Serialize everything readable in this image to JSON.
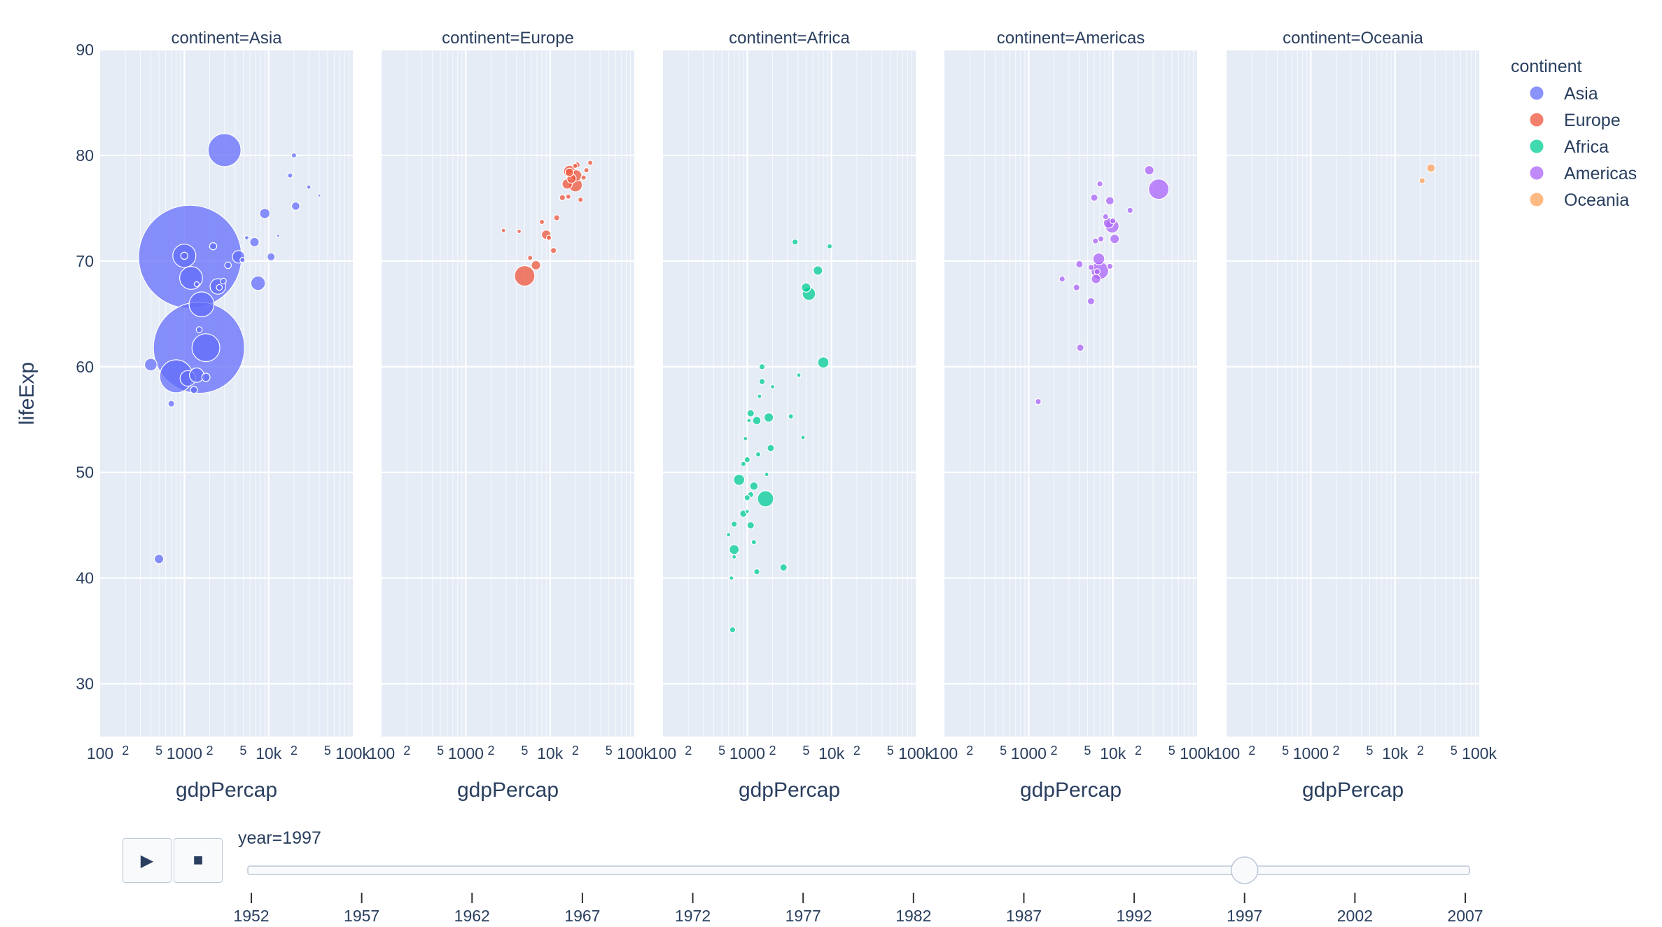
{
  "chart_data": {
    "type": "scatter",
    "facet_titles": [
      "continent=Asia",
      "continent=Europe",
      "continent=Africa",
      "continent=Americas",
      "continent=Oceania"
    ],
    "xlabel": "gdpPercap",
    "ylabel": "lifeExp",
    "x_scale": "log",
    "xlim": [
      100,
      100000
    ],
    "ylim": [
      25,
      90
    ],
    "y_ticks": [
      "30",
      "40",
      "50",
      "60",
      "70",
      "80",
      "90"
    ],
    "x_tick_labels": [
      {
        "value": 100,
        "label": "100"
      },
      {
        "value": 200,
        "label": "2"
      },
      {
        "value": 500,
        "label": "5"
      },
      {
        "value": 1000,
        "label": "1000"
      },
      {
        "value": 2000,
        "label": "2"
      },
      {
        "value": 5000,
        "label": "5"
      },
      {
        "value": 10000,
        "label": "10k"
      },
      {
        "value": 20000,
        "label": "2"
      },
      {
        "value": 50000,
        "label": "5"
      },
      {
        "value": 100000,
        "label": "100k"
      }
    ],
    "grid": true,
    "legend": {
      "title": "continent",
      "position": "right"
    },
    "series": [
      {
        "name": "Asia",
        "color": "#636efa",
        "points": [
          [
            1170,
            70.4,
            1230
          ],
          [
            1490,
            61.8,
            960
          ],
          [
            3000,
            80.5,
            125
          ],
          [
            800,
            59.1,
            125
          ],
          [
            1800,
            61.8,
            90
          ],
          [
            1600,
            65.9,
            72
          ],
          [
            1000,
            70.5,
            62
          ],
          [
            1200,
            68.4,
            60
          ],
          [
            9000,
            74.5,
            12
          ],
          [
            400,
            60.2,
            18
          ],
          [
            500,
            41.8,
            10
          ],
          [
            7500,
            67.9,
            24
          ],
          [
            1400,
            59.2,
            24
          ],
          [
            1100,
            58.9,
            28
          ],
          [
            2500,
            67.6,
            28
          ],
          [
            4400,
            70.4,
            18
          ],
          [
            6800,
            71.8,
            10
          ],
          [
            1800,
            59.0,
            8
          ],
          [
            700,
            56.5,
            5
          ],
          [
            1300,
            57.8,
            6
          ],
          [
            2200,
            71.4,
            6
          ],
          [
            1000,
            70.5,
            6
          ],
          [
            3300,
            69.6,
            5
          ],
          [
            2900,
            68.1,
            4
          ],
          [
            20000,
            80.0,
            3
          ],
          [
            18000,
            78.1,
            3
          ],
          [
            21000,
            75.2,
            8
          ],
          [
            1500,
            63.5,
            4
          ],
          [
            2600,
            67.5,
            4
          ],
          [
            4900,
            70.1,
            3
          ],
          [
            10700,
            70.4,
            7
          ],
          [
            30000,
            77.0,
            2
          ],
          [
            40000,
            76.2,
            1
          ],
          [
            1400,
            67.8,
            3
          ],
          [
            5500,
            72.2,
            2
          ],
          [
            13000,
            72.4,
            1
          ]
        ]
      },
      {
        "name": "Europe",
        "color": "#ef553b",
        "points": [
          [
            5000,
            68.6,
            48
          ],
          [
            20000,
            77.2,
            22
          ],
          [
            17000,
            78.5,
            16
          ],
          [
            16000,
            77.3,
            12
          ],
          [
            20500,
            78.1,
            14
          ],
          [
            18000,
            77.8,
            10
          ],
          [
            9000,
            72.5,
            10
          ],
          [
            6800,
            69.6,
            10
          ],
          [
            17000,
            78.4,
            8
          ],
          [
            11000,
            71.0,
            4
          ],
          [
            12000,
            74.1,
            4
          ],
          [
            14000,
            76.0,
            4
          ],
          [
            21000,
            79.1,
            4
          ],
          [
            27000,
            78.6,
            3
          ],
          [
            30000,
            79.3,
            3
          ],
          [
            25000,
            77.9,
            3
          ],
          [
            8000,
            73.7,
            3
          ],
          [
            4300,
            72.8,
            2
          ],
          [
            5800,
            70.3,
            3
          ],
          [
            9700,
            72.2,
            3
          ],
          [
            16500,
            76.1,
            3
          ],
          [
            19800,
            79.0,
            3
          ],
          [
            23000,
            75.8,
            3
          ],
          [
            2800,
            72.9,
            2
          ]
        ]
      },
      {
        "name": "Africa",
        "color": "#00cc96",
        "points": [
          [
            1650,
            47.5,
            30
          ],
          [
            5400,
            66.9,
            20
          ],
          [
            8000,
            60.4,
            14
          ],
          [
            800,
            49.3,
            14
          ],
          [
            700,
            42.7,
            11
          ],
          [
            1800,
            55.2,
            10
          ],
          [
            5000,
            67.5,
            10
          ],
          [
            6900,
            69.1,
            10
          ],
          [
            1200,
            48.7,
            8
          ],
          [
            1300,
            54.9,
            8
          ],
          [
            1100,
            55.6,
            6
          ],
          [
            1900,
            52.3,
            6
          ],
          [
            1100,
            45.0,
            6
          ],
          [
            900,
            46.1,
            6
          ],
          [
            2700,
            41.0,
            6
          ],
          [
            1500,
            58.6,
            4
          ],
          [
            1000,
            51.2,
            4
          ],
          [
            1100,
            47.9,
            4
          ],
          [
            1000,
            47.6,
            4
          ],
          [
            700,
            45.1,
            4
          ],
          [
            650,
            40.0,
            2
          ],
          [
            670,
            35.1,
            4
          ],
          [
            1300,
            40.6,
            4
          ],
          [
            900,
            50.8,
            3
          ],
          [
            1350,
            51.7,
            3
          ],
          [
            1500,
            60.0,
            4
          ],
          [
            3700,
            71.8,
            4
          ],
          [
            9500,
            71.4,
            3
          ],
          [
            3300,
            55.3,
            3
          ],
          [
            1200,
            43.4,
            3
          ],
          [
            1000,
            46.3,
            2
          ],
          [
            1700,
            49.8,
            2
          ],
          [
            4600,
            53.3,
            2
          ],
          [
            950,
            53.2,
            2
          ],
          [
            2000,
            58.1,
            2
          ],
          [
            700,
            42.0,
            2
          ],
          [
            1050,
            54.9,
            2
          ],
          [
            1400,
            57.2,
            2
          ],
          [
            4100,
            59.2,
            2
          ],
          [
            600,
            44.1,
            2
          ]
        ]
      },
      {
        "name": "Americas",
        "color": "#ab63fa",
        "points": [
          [
            35000,
            76.8,
            48
          ],
          [
            7000,
            69.1,
            36
          ],
          [
            9800,
            73.3,
            22
          ],
          [
            6800,
            70.2,
            16
          ],
          [
            8900,
            73.6,
            12
          ],
          [
            6300,
            68.3,
            10
          ],
          [
            10500,
            72.1,
            10
          ],
          [
            9200,
            75.7,
            8
          ],
          [
            27000,
            78.6,
            10
          ],
          [
            4100,
            61.8,
            6
          ],
          [
            5500,
            66.2,
            6
          ],
          [
            6000,
            76.0,
            6
          ],
          [
            4000,
            69.7,
            6
          ],
          [
            2500,
            68.3,
            4
          ],
          [
            1300,
            56.7,
            4
          ],
          [
            3700,
            67.5,
            5
          ],
          [
            8200,
            74.2,
            4
          ],
          [
            6500,
            69.0,
            4
          ],
          [
            5500,
            69.4,
            4
          ],
          [
            7200,
            72.1,
            4
          ],
          [
            9200,
            69.5,
            4
          ],
          [
            6200,
            71.9,
            4
          ],
          [
            7000,
            77.3,
            4
          ],
          [
            16000,
            74.8,
            4
          ],
          [
            10000,
            73.8,
            4
          ]
        ]
      },
      {
        "name": "Oceania",
        "color": "#ffa15a",
        "points": [
          [
            26700,
            78.8,
            8
          ],
          [
            21000,
            77.6,
            4
          ]
        ]
      }
    ],
    "slider": {
      "current_label": "year=1997",
      "current_value": 1997,
      "steps": [
        "1952",
        "1957",
        "1962",
        "1967",
        "1972",
        "1977",
        "1982",
        "1987",
        "1992",
        "1997",
        "2002",
        "2007"
      ]
    }
  },
  "controls": {
    "play_symbol": "▶",
    "stop_symbol": "■"
  }
}
